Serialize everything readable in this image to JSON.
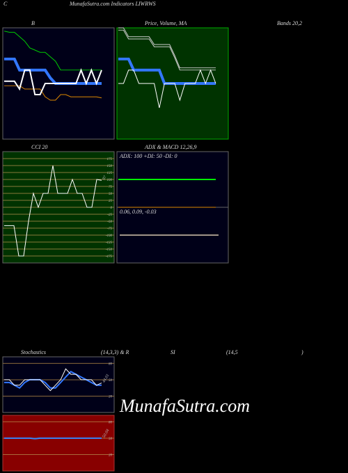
{
  "header": {
    "left": "C",
    "title": "MunafaSutra.com Indicators LIWRWS"
  },
  "labels": [
    "B",
    "Price, Volume, MA",
    "Bands 20,2",
    "CCI 20",
    "ADX  & MACD 12,26,9",
    "Stochastics",
    "(14,3,3) & R",
    "SI",
    "(14,5",
    ")"
  ],
  "watermark": "MunafaSutra.com",
  "chart_data": [
    {
      "type": "line",
      "background": "#000018",
      "border": "#666666",
      "ylim": [
        0,
        100
      ],
      "series": [
        {
          "color": "#00cc00",
          "width": 1,
          "values": [
            97,
            96,
            96,
            92,
            88,
            82,
            80,
            78,
            78,
            74,
            70,
            62,
            62,
            62,
            62,
            62,
            62,
            62,
            62,
            62
          ]
        },
        {
          "color": "#dd8800",
          "width": 1,
          "values": [
            48,
            48,
            48,
            48,
            45,
            45,
            45,
            45,
            38,
            35,
            35,
            40,
            40,
            38,
            38,
            38,
            38,
            38,
            38,
            37
          ]
        },
        {
          "color": "#3377ff",
          "width": 4,
          "values": [
            72,
            72,
            72,
            62,
            62,
            62,
            62,
            62,
            62,
            55,
            50,
            50,
            50,
            50,
            50,
            50,
            50,
            50,
            50,
            50
          ]
        },
        {
          "color": "#ffffff",
          "width": 2,
          "values": [
            52,
            52,
            52,
            45,
            62,
            62,
            40,
            40,
            50,
            50,
            50,
            50,
            50,
            50,
            50,
            62,
            50,
            62,
            50,
            62
          ]
        }
      ]
    },
    {
      "type": "line",
      "background": "#003300",
      "border": "#00aa00",
      "ylim": [
        0,
        100
      ],
      "series": [
        {
          "color": "#cccccc",
          "width": 1,
          "values": [
            100,
            100,
            92,
            92,
            92,
            92,
            92,
            85,
            85,
            85,
            85,
            75,
            64,
            64,
            64,
            64,
            64,
            64,
            64,
            64
          ]
        },
        {
          "color": "#cccccc",
          "width": 1,
          "values": [
            98,
            98,
            90,
            90,
            90,
            90,
            90,
            83,
            83,
            83,
            83,
            73,
            62,
            62,
            62,
            62,
            62,
            62,
            62,
            62
          ]
        },
        {
          "color": "#3377ff",
          "width": 4,
          "values": [
            72,
            72,
            72,
            62,
            62,
            62,
            62,
            62,
            62,
            50,
            50,
            50,
            50,
            50,
            50,
            50,
            50,
            50,
            50,
            50
          ]
        },
        {
          "color": "#ffffff",
          "width": 1,
          "values": [
            50,
            50,
            62,
            62,
            50,
            50,
            50,
            50,
            28,
            50,
            50,
            50,
            35,
            50,
            50,
            50,
            62,
            50,
            62,
            50
          ]
        }
      ]
    },
    {
      "type": "line",
      "background": "#003300",
      "border": "#666666",
      "ylim": [
        -200,
        200
      ],
      "grid": true,
      "grid_color": "#8a7a3a",
      "yticks": [
        175,
        150,
        125,
        100,
        75,
        50,
        25,
        0,
        -25,
        -50,
        -75,
        -100,
        -125,
        -150,
        -175
      ],
      "series": [
        {
          "color": "#ffffff",
          "width": 1,
          "values": [
            -66,
            -66,
            -66,
            -175,
            -175,
            -50,
            50,
            0,
            50,
            50,
            150,
            50,
            50,
            50,
            100,
            50,
            50,
            0,
            0,
            100,
            97
          ]
        }
      ],
      "last_label": true
    },
    {
      "type": "line",
      "background": "#000018",
      "border": "#666666",
      "ylim": [
        0,
        100
      ],
      "text": "ADX: 100  +DI: 50  -DI: 0",
      "series": [
        {
          "color": "#00ee00",
          "width": 2,
          "values": [
            50,
            50,
            50,
            50,
            50,
            50,
            50,
            50,
            50,
            50
          ]
        }
      ]
    },
    {
      "type": "line",
      "background": "#000018",
      "border": "#666666",
      "ylim": [
        -0.1,
        0.1
      ],
      "text": "0.06,  0.09,  -0.03",
      "series": [
        {
          "color": "#dd8800",
          "width": 1,
          "values": [
            0.1,
            0.1,
            0.1,
            0.1,
            0.1,
            0.1,
            0.1,
            0.1,
            0.1,
            0.1
          ]
        },
        {
          "color": "#ffeecc",
          "width": 1.5,
          "inset": true,
          "values": [
            0,
            0,
            0,
            0,
            0,
            0,
            0,
            0,
            0,
            0
          ]
        }
      ]
    },
    {
      "type": "line",
      "background": "#000018",
      "border": "#666666",
      "ylim": [
        -10,
        92
      ],
      "grid": true,
      "grid_color": "#8a6a3a",
      "yticks": [
        80,
        50,
        20
      ],
      "series": [
        {
          "color": "#3377ff",
          "width": 2,
          "values": [
            45,
            45,
            40,
            35,
            45,
            50,
            50,
            50,
            45,
            35,
            35,
            45,
            55,
            65,
            60,
            55,
            50,
            45,
            40,
            40
          ]
        },
        {
          "color": "#ffffff",
          "width": 1,
          "values": [
            50,
            50,
            40,
            40,
            50,
            50,
            50,
            50,
            40,
            30,
            40,
            50,
            70,
            60,
            60,
            50,
            50,
            50,
            40,
            44.01
          ]
        }
      ],
      "last_label": true
    },
    {
      "type": "line",
      "background": "#880000",
      "border": "#aa3333",
      "ylim": [
        -10,
        92
      ],
      "grid": true,
      "grid_color": "#aa6a3a",
      "yticks": [
        80,
        50,
        20
      ],
      "series": [
        {
          "color": "#3388ff",
          "width": 2,
          "values": [
            50,
            50,
            50,
            50,
            50,
            50,
            49,
            50,
            50,
            50,
            50,
            50,
            50,
            50,
            50,
            50,
            50,
            50,
            50,
            50.04
          ]
        }
      ],
      "last_label": true
    }
  ]
}
